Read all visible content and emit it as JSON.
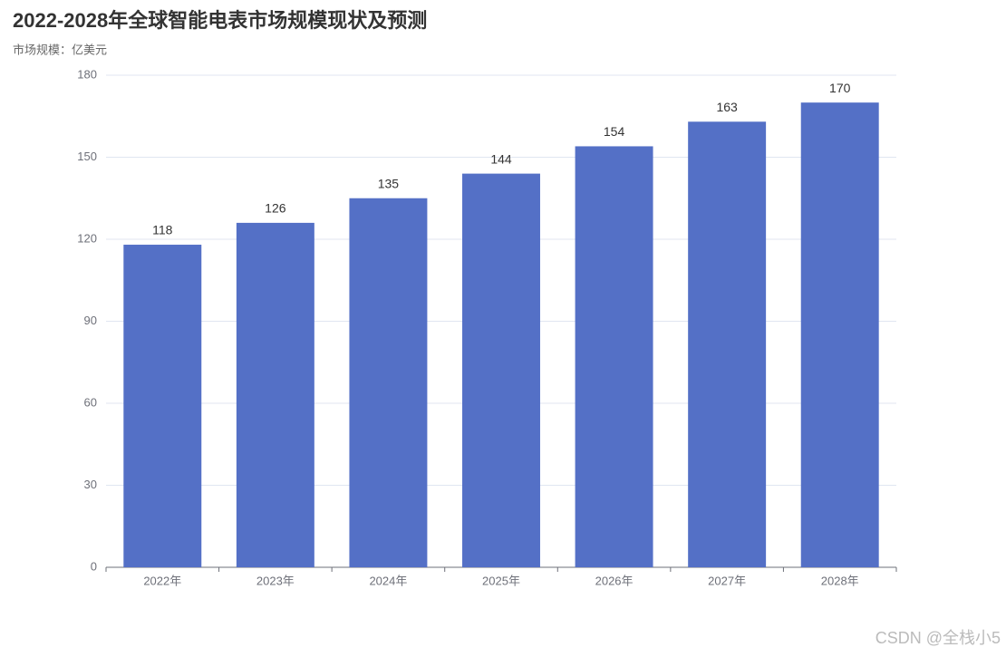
{
  "chart_data": {
    "type": "bar",
    "title": "2022-2028年全球智能电表市场规模现状及预测",
    "subtitle": "市场规模：亿美元",
    "categories": [
      "2022年",
      "2023年",
      "2024年",
      "2025年",
      "2026年",
      "2027年",
      "2028年"
    ],
    "values": [
      118,
      126,
      135,
      144,
      154,
      163,
      170
    ],
    "color": "#5470c6",
    "ylim": [
      0,
      180
    ],
    "yticks": [
      0,
      30,
      60,
      90,
      120,
      150,
      180
    ],
    "grid": true
  },
  "watermark": "CSDN @全栈小5"
}
